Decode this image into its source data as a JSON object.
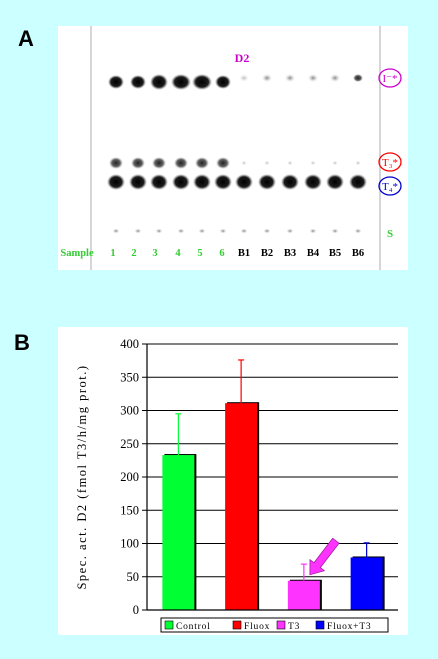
{
  "panel_a": {
    "letter": "A",
    "header": "D2",
    "lane_labels": [
      "Sample",
      "1",
      "2",
      "3",
      "4",
      "5",
      "6",
      "B1",
      "B2",
      "B3",
      "B4",
      "B5",
      "B6"
    ],
    "band_labels": {
      "iodide": "I⁻*",
      "t3": "T₃*",
      "t4": "T₄*",
      "origin": "S"
    },
    "colors": {
      "lane_label_green": "#33cc33",
      "header_magenta": "#cc00cc",
      "iodide_circle": "#cc00cc",
      "t3_circle": "#ff0000",
      "t4_circle": "#0000cc",
      "origin_green": "#33cc33"
    }
  },
  "panel_b": {
    "letter": "B"
  },
  "chart_data": {
    "type": "bar",
    "title": "",
    "xlabel": "",
    "ylabel": "Spec. act. D2 (fmol T3/h/mg prot.)",
    "ylim": [
      0,
      400
    ],
    "yticks": [
      0,
      50,
      100,
      150,
      200,
      250,
      300,
      350,
      400
    ],
    "grid": "horizontal",
    "legend_position": "bottom",
    "categories": [
      "Control",
      "Fluox",
      "T3",
      "Fluox+T3"
    ],
    "values": [
      233,
      311,
      44,
      79
    ],
    "errors": [
      62,
      65,
      25,
      22
    ],
    "colors": [
      "#00ff33",
      "#ff0000",
      "#ff33ff",
      "#0000ff"
    ],
    "annotation": {
      "type": "arrow",
      "target": "T3",
      "color": "#ff33ff"
    }
  }
}
